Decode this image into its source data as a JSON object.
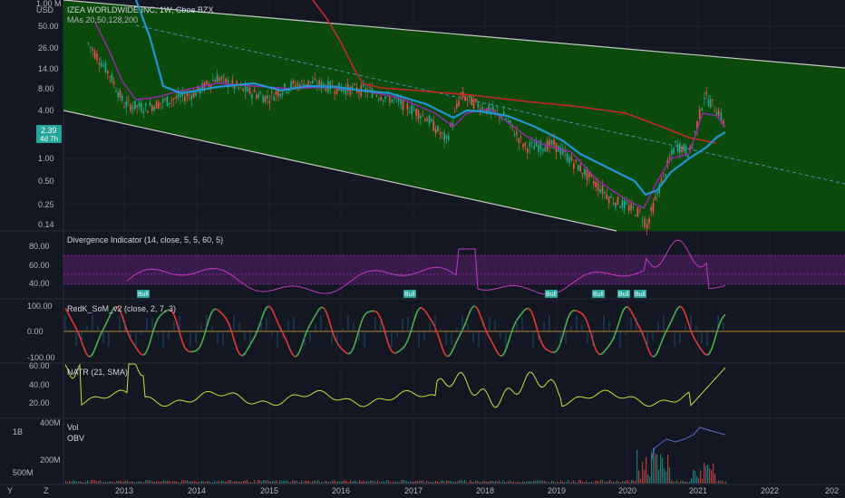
{
  "header": {
    "symbol_title": "IZEA WORLDWIDE INC, 1W, Cboe BZX",
    "ma_label": "MAs 20,50,128,200",
    "unit_top": "1.00 M",
    "currency": "USD"
  },
  "price_badge": {
    "price": "2.39",
    "countdown": "4d 7h"
  },
  "panels": {
    "divergence": {
      "title": "Divergence Indicator (14, close, 5, 5, 60, 5)",
      "bull_label": "Bull"
    },
    "redk": {
      "title": "RedK_SoM_v2 (close, 2, 7, 3)"
    },
    "natr": {
      "title": "NATR (21, SMA)"
    },
    "volume": {
      "title": "Vol",
      "obv": "OBV"
    }
  },
  "bottom_bar": {
    "y_label": "Y",
    "z_label": "Z"
  },
  "colors": {
    "background": "#131722",
    "channel_fill": "#0b4d0b",
    "ma_blue": "#2196d3",
    "ma_red": "#c62828",
    "ma_purple": "#9c27b0",
    "bull": "#26a69a",
    "natr": "#cddc39",
    "divergence_line": "#c239c2",
    "divergence_band": "#5a1f6e"
  },
  "chart_data": {
    "type": "line",
    "x_axis_ticks": [
      "2013",
      "2014",
      "2015",
      "2016",
      "2017",
      "2018",
      "2019",
      "2020",
      "2021",
      "2022",
      "202"
    ],
    "price_axis_ticks": [
      "50.00",
      "26.00",
      "14.00",
      "8.00",
      "4.00",
      "2.39",
      "1.00",
      "0.50",
      "0.25",
      "0.14"
    ],
    "log_scale": true,
    "divergence_axis_ticks": [
      "80.00",
      "60.00",
      "40.00"
    ],
    "redk_axis_ticks": [
      "100.00",
      "0.00",
      "-100.00"
    ],
    "natr_axis_ticks": [
      "60.00",
      "40.00",
      "20.00"
    ],
    "volume_axis_ticks": [
      "1B",
      "500M"
    ],
    "obv_axis_ticks": [
      "400M",
      "200M"
    ],
    "price_series": [
      {
        "x": 2012.5,
        "y": 30
      },
      {
        "x": 2012.8,
        "y": 12
      },
      {
        "x": 2013.0,
        "y": 5
      },
      {
        "x": 2013.3,
        "y": 4.5
      },
      {
        "x": 2013.6,
        "y": 5.5
      },
      {
        "x": 2014.0,
        "y": 7
      },
      {
        "x": 2014.3,
        "y": 11
      },
      {
        "x": 2014.6,
        "y": 8
      },
      {
        "x": 2015.0,
        "y": 6
      },
      {
        "x": 2015.3,
        "y": 8.5
      },
      {
        "x": 2015.6,
        "y": 9.5
      },
      {
        "x": 2016.0,
        "y": 8
      },
      {
        "x": 2016.4,
        "y": 7.5
      },
      {
        "x": 2016.8,
        "y": 5.5
      },
      {
        "x": 2017.2,
        "y": 3.5
      },
      {
        "x": 2017.5,
        "y": 1.7
      },
      {
        "x": 2017.7,
        "y": 6.5
      },
      {
        "x": 2018.0,
        "y": 4.5
      },
      {
        "x": 2018.3,
        "y": 3.5
      },
      {
        "x": 2018.6,
        "y": 1.4
      },
      {
        "x": 2019.0,
        "y": 1.5
      },
      {
        "x": 2019.4,
        "y": 0.7
      },
      {
        "x": 2019.8,
        "y": 0.3
      },
      {
        "x": 2020.2,
        "y": 0.2
      },
      {
        "x": 2020.3,
        "y": 0.14
      },
      {
        "x": 2020.5,
        "y": 0.5
      },
      {
        "x": 2020.7,
        "y": 1.5
      },
      {
        "x": 2020.9,
        "y": 1.2
      },
      {
        "x": 2021.1,
        "y": 6.5
      },
      {
        "x": 2021.3,
        "y": 4.0
      },
      {
        "x": 2021.4,
        "y": 2.39
      }
    ]
  }
}
